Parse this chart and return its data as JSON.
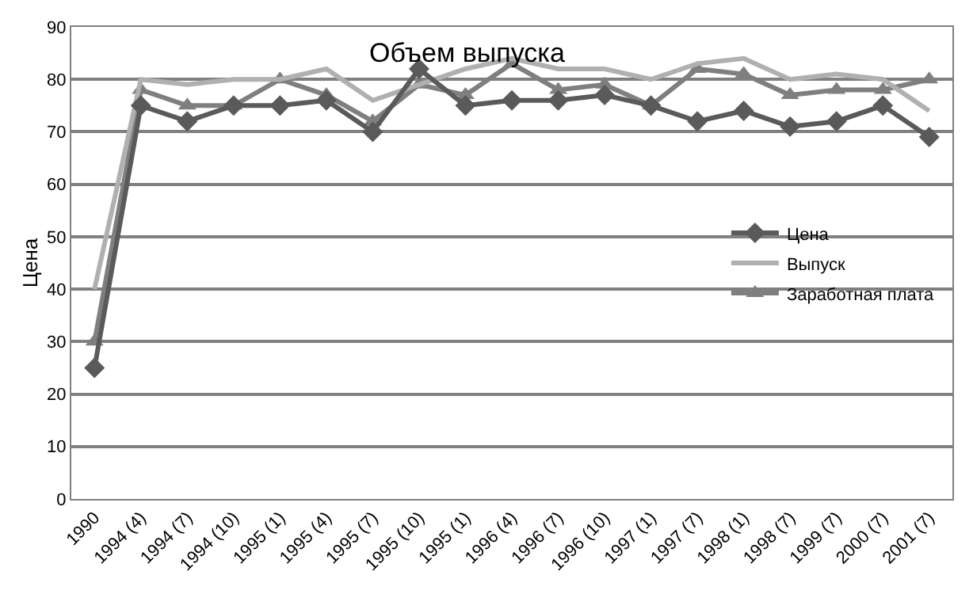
{
  "chart_data": {
    "type": "line",
    "title": "Объем выпуска",
    "ylabel": "Цена",
    "categories": [
      "1990",
      "1994 (4)",
      "1994 (7)",
      "1994 (10)",
      "1995 (1)",
      "1995 (4)",
      "1995 (7)",
      "1995 (10)",
      "1995 (1)",
      "1996 (4)",
      "1996 (7)",
      "1996 (10)",
      "1997 (1)",
      "1997 (7)",
      "1998 (1)",
      "1998 (7)",
      "1999 (7)",
      "2000 (7)",
      "2001 (7)"
    ],
    "series": [
      {
        "name": "Цена",
        "color": "#5a5a5a",
        "marker": "diamond",
        "values": [
          25,
          75,
          72,
          75,
          75,
          76,
          70,
          82,
          75,
          76,
          76,
          77,
          75,
          72,
          74,
          71,
          72,
          75,
          69
        ]
      },
      {
        "name": "Выпуск",
        "color": "#b0b0b0",
        "marker": "none",
        "values": [
          40,
          80,
          79,
          80,
          80,
          82,
          76,
          79,
          82,
          84,
          82,
          82,
          80,
          83,
          84,
          80,
          81,
          80,
          74
        ]
      },
      {
        "name": "Заработная плата",
        "color": "#7f7f7f",
        "marker": "triangle",
        "values": [
          30,
          78,
          75,
          75,
          80,
          77,
          72,
          79,
          77,
          83,
          78,
          79,
          75,
          82,
          81,
          77,
          78,
          78,
          80
        ]
      }
    ],
    "ylim": [
      0,
      90
    ],
    "yticks": [
      0,
      10,
      20,
      30,
      40,
      50,
      60,
      70,
      80,
      90
    ],
    "grid": "y",
    "legend": "right",
    "line_style": "solid"
  }
}
